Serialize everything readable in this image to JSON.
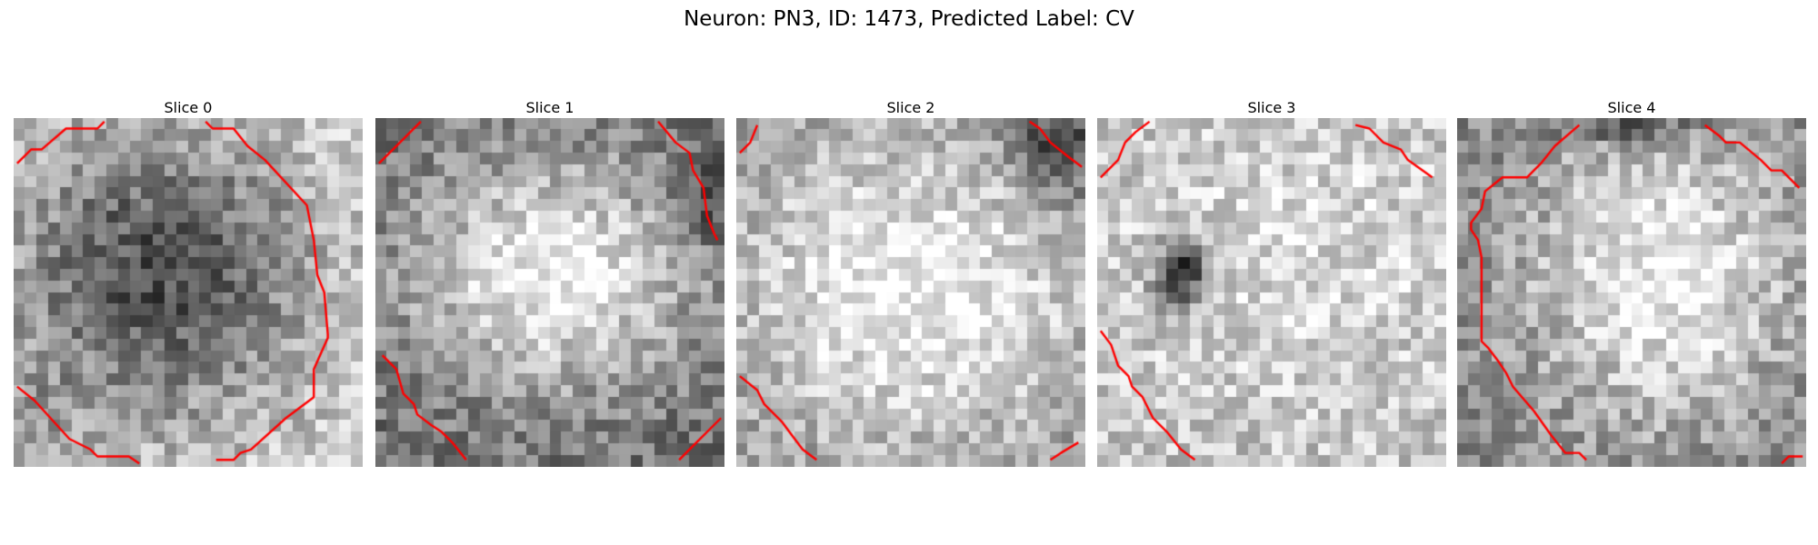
{
  "figure": {
    "title": "Neuron: PN3, ID: 1473, Predicted Label: CV"
  },
  "panels": [
    {
      "title": "Slice 0"
    },
    {
      "title": "Slice 1"
    },
    {
      "title": "Slice 2"
    },
    {
      "title": "Slice 3"
    },
    {
      "title": "Slice 4"
    }
  ],
  "style": {
    "contour_color": "#ff0000",
    "colormap": "greys"
  }
}
